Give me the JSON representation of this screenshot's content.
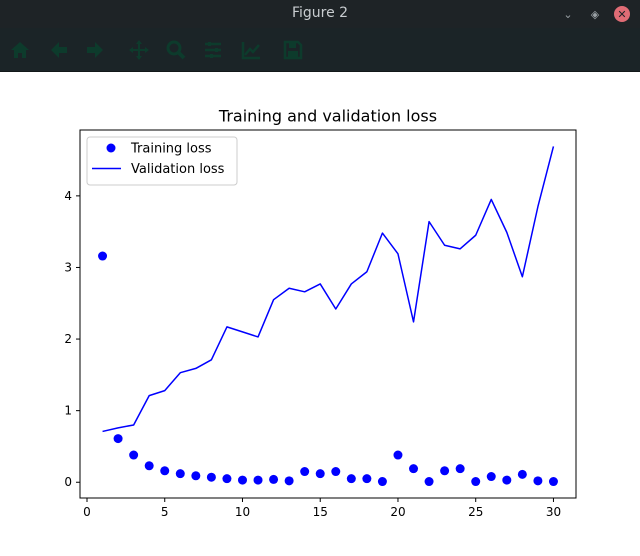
{
  "window": {
    "title": "Figure 2"
  },
  "toolbar": {
    "buttons": [
      {
        "name": "home-icon"
      },
      {
        "name": "back-arrow-icon"
      },
      {
        "name": "forward-arrow-icon"
      },
      {
        "name": "pan-icon"
      },
      {
        "name": "zoom-icon"
      },
      {
        "name": "subplots-config-icon"
      },
      {
        "name": "edit-axis-icon"
      },
      {
        "name": "save-icon"
      }
    ],
    "icon_color": "#0d3b2c"
  },
  "chart_data": {
    "type": "line",
    "title": "Training and validation loss",
    "xlabel": "",
    "ylabel": "",
    "xlim": [
      -0.45,
      31.45
    ],
    "ylim": [
      -0.22,
      4.92
    ],
    "xticks": [
      0,
      5,
      10,
      15,
      20,
      25,
      30
    ],
    "yticks": [
      0,
      1,
      2,
      3,
      4
    ],
    "grid": false,
    "legend_position": "top-left",
    "x": [
      1,
      2,
      3,
      4,
      5,
      6,
      7,
      8,
      9,
      10,
      11,
      12,
      13,
      14,
      15,
      16,
      17,
      18,
      19,
      20,
      21,
      22,
      23,
      24,
      25,
      26,
      27,
      28,
      29,
      30
    ],
    "series": [
      {
        "name": "Training loss",
        "style": "markers",
        "color": "#0000ff",
        "values": [
          3.16,
          0.61,
          0.38,
          0.23,
          0.16,
          0.12,
          0.09,
          0.07,
          0.05,
          0.03,
          0.03,
          0.04,
          0.02,
          0.15,
          0.12,
          0.15,
          0.05,
          0.05,
          0.01,
          0.38,
          0.19,
          0.01,
          0.16,
          0.19,
          0.01,
          0.08,
          0.03,
          0.11,
          0.02,
          0.01
        ]
      },
      {
        "name": "Validation loss",
        "style": "line",
        "color": "#0000ff",
        "values": [
          0.71,
          0.76,
          0.8,
          1.21,
          1.28,
          1.53,
          1.59,
          1.71,
          2.17,
          2.1,
          2.03,
          2.55,
          2.71,
          2.66,
          2.77,
          2.42,
          2.77,
          2.94,
          3.48,
          3.19,
          2.24,
          3.64,
          3.31,
          3.26,
          3.45,
          3.95,
          3.49,
          2.87,
          3.85,
          4.69
        ]
      }
    ]
  }
}
